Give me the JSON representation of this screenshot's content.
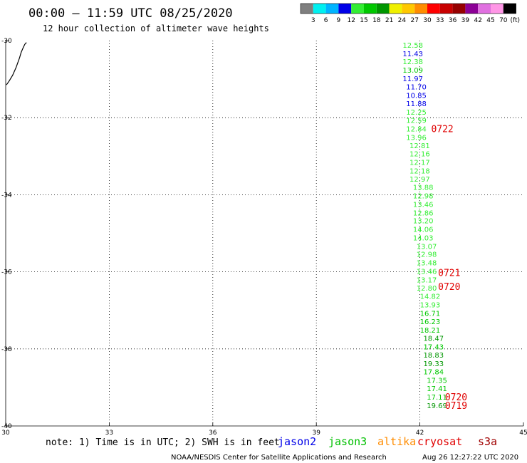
{
  "header": {
    "title": "00:00 – 11:59 UTC 08/25/2020",
    "subtitle": "12 hour collection of altimeter wave heights"
  },
  "colorbar": {
    "colors": [
      "#7f7f7f",
      "#00f0f0",
      "#00b4ff",
      "#0000e8",
      "#33ee33",
      "#00c800",
      "#009600",
      "#f0f000",
      "#ffc800",
      "#ff8c00",
      "#ff0000",
      "#c80000",
      "#960000",
      "#8c0096",
      "#e070e0",
      "#ff96e6",
      "#000000"
    ],
    "labels": [
      "3",
      "6",
      "9",
      "12",
      "15",
      "18",
      "21",
      "24",
      "27",
      "30",
      "33",
      "36",
      "39",
      "42",
      "45",
      "70"
    ],
    "unit": "(ft)"
  },
  "chart_data": {
    "type": "scatter",
    "xlim": [
      30,
      45
    ],
    "ylim": [
      -40,
      -30
    ],
    "x_ticks": [
      "30",
      "33",
      "36",
      "39",
      "42",
      "45"
    ],
    "y_ticks": [
      "-30",
      "-32",
      "-34",
      "-36",
      "-38",
      "-40"
    ],
    "grid": true,
    "labels": [
      {
        "x": 41.5,
        "y": -30.11,
        "text": "12.58",
        "c": "#33ee33"
      },
      {
        "x": 41.5,
        "y": -30.33,
        "text": "11.43",
        "c": "#0000e8"
      },
      {
        "x": 41.5,
        "y": -30.54,
        "text": "12.38",
        "c": "#33ee33"
      },
      {
        "x": 41.5,
        "y": -30.76,
        "text": "13.09",
        "c": "#00c800"
      },
      {
        "x": 41.5,
        "y": -30.98,
        "text": "11.97",
        "c": "#0000e8"
      },
      {
        "x": 41.6,
        "y": -31.19,
        "text": "11.70",
        "c": "#0000e8"
      },
      {
        "x": 41.6,
        "y": -31.41,
        "text": "10.85",
        "c": "#0000e8"
      },
      {
        "x": 41.6,
        "y": -31.63,
        "text": "11.88",
        "c": "#0000e8"
      },
      {
        "x": 41.6,
        "y": -31.85,
        "text": "12.25",
        "c": "#33ee33"
      },
      {
        "x": 41.6,
        "y": -32.06,
        "text": "12.59",
        "c": "#33ee33"
      },
      {
        "x": 41.6,
        "y": -32.28,
        "text": "12.84",
        "c": "#33ee33"
      },
      {
        "x": 41.6,
        "y": -32.5,
        "text": "13.96",
        "c": "#33ee33"
      },
      {
        "x": 41.7,
        "y": -32.72,
        "text": "12.81",
        "c": "#33ee33"
      },
      {
        "x": 41.7,
        "y": -32.93,
        "text": "12.16",
        "c": "#33ee33"
      },
      {
        "x": 41.7,
        "y": -33.15,
        "text": "12.17",
        "c": "#33ee33"
      },
      {
        "x": 41.7,
        "y": -33.37,
        "text": "12.18",
        "c": "#33ee33"
      },
      {
        "x": 41.7,
        "y": -33.59,
        "text": "12.97",
        "c": "#33ee33"
      },
      {
        "x": 41.8,
        "y": -33.8,
        "text": "13.88",
        "c": "#33ee33"
      },
      {
        "x": 41.8,
        "y": -34.02,
        "text": "12.98",
        "c": "#33ee33"
      },
      {
        "x": 41.8,
        "y": -34.24,
        "text": "13.46",
        "c": "#33ee33"
      },
      {
        "x": 41.8,
        "y": -34.46,
        "text": "12.86",
        "c": "#33ee33"
      },
      {
        "x": 41.8,
        "y": -34.67,
        "text": "13.20",
        "c": "#33ee33"
      },
      {
        "x": 41.8,
        "y": -34.89,
        "text": "14.06",
        "c": "#33ee33"
      },
      {
        "x": 41.8,
        "y": -35.11,
        "text": "14.03",
        "c": "#33ee33"
      },
      {
        "x": 41.9,
        "y": -35.33,
        "text": "13.07",
        "c": "#33ee33"
      },
      {
        "x": 41.9,
        "y": -35.54,
        "text": "12.98",
        "c": "#33ee33"
      },
      {
        "x": 41.9,
        "y": -35.76,
        "text": "13.48",
        "c": "#33ee33"
      },
      {
        "x": 41.9,
        "y": -35.98,
        "text": "13.46",
        "c": "#33ee33"
      },
      {
        "x": 41.9,
        "y": -36.2,
        "text": "13.17",
        "c": "#33ee33"
      },
      {
        "x": 41.9,
        "y": -36.41,
        "text": "12.80",
        "c": "#33ee33"
      },
      {
        "x": 42.0,
        "y": -36.63,
        "text": "14.82",
        "c": "#33ee33"
      },
      {
        "x": 42.0,
        "y": -36.85,
        "text": "13.93",
        "c": "#33ee33"
      },
      {
        "x": 42.0,
        "y": -37.07,
        "text": "16.71",
        "c": "#00c800"
      },
      {
        "x": 42.0,
        "y": -37.28,
        "text": "16.23",
        "c": "#00c800"
      },
      {
        "x": 42.0,
        "y": -37.5,
        "text": "18.21",
        "c": "#00c800"
      },
      {
        "x": 42.1,
        "y": -37.72,
        "text": "18.47",
        "c": "#009600"
      },
      {
        "x": 42.1,
        "y": -37.94,
        "text": "17.43",
        "c": "#00c800"
      },
      {
        "x": 42.1,
        "y": -38.15,
        "text": "18.83",
        "c": "#009600"
      },
      {
        "x": 42.1,
        "y": -38.37,
        "text": "19.33",
        "c": "#009600"
      },
      {
        "x": 42.1,
        "y": -38.59,
        "text": "17.84",
        "c": "#00c800"
      },
      {
        "x": 42.2,
        "y": -38.81,
        "text": "17.35",
        "c": "#00c800"
      },
      {
        "x": 42.2,
        "y": -39.02,
        "text": "17.41",
        "c": "#00c800"
      },
      {
        "x": 42.2,
        "y": -39.24,
        "text": "17.11",
        "c": "#00c800"
      },
      {
        "x": 42.2,
        "y": -39.46,
        "text": "19.69",
        "c": "#009600"
      }
    ],
    "times": [
      {
        "x": 42.1,
        "y": -32.28,
        "text": "0722"
      },
      {
        "x": 42.3,
        "y": -36.02,
        "text": "0721"
      },
      {
        "x": 42.3,
        "y": -36.38,
        "text": "0720"
      },
      {
        "x": 42.5,
        "y": -39.24,
        "text": "0720"
      },
      {
        "x": 42.5,
        "y": -39.46,
        "text": "0719"
      }
    ],
    "coastline": [
      [
        30.02,
        -31.15
      ],
      [
        30.1,
        -31.05
      ],
      [
        30.2,
        -30.9
      ],
      [
        30.3,
        -30.7
      ],
      [
        30.4,
        -30.45
      ],
      [
        30.45,
        -30.3
      ],
      [
        30.5,
        -30.2
      ],
      [
        30.55,
        -30.1
      ],
      [
        30.6,
        -30.05
      ]
    ]
  },
  "legend": [
    {
      "name": "jason2",
      "color": "#0000e8"
    },
    {
      "name": "jason3",
      "color": "#00c000"
    },
    {
      "name": "altika",
      "color": "#ff8c00"
    },
    {
      "name": "cryosat",
      "color": "#e00000"
    },
    {
      "name": "s3a",
      "color": "#a00000"
    }
  ],
  "note": "note: 1) Time is in UTC; 2) SWH is in feet",
  "footer": {
    "credit": "NOAA/NESDIS Center for Satellite Applications and Research",
    "timestamp": "Aug 26 12:27:22 UTC 2020"
  }
}
